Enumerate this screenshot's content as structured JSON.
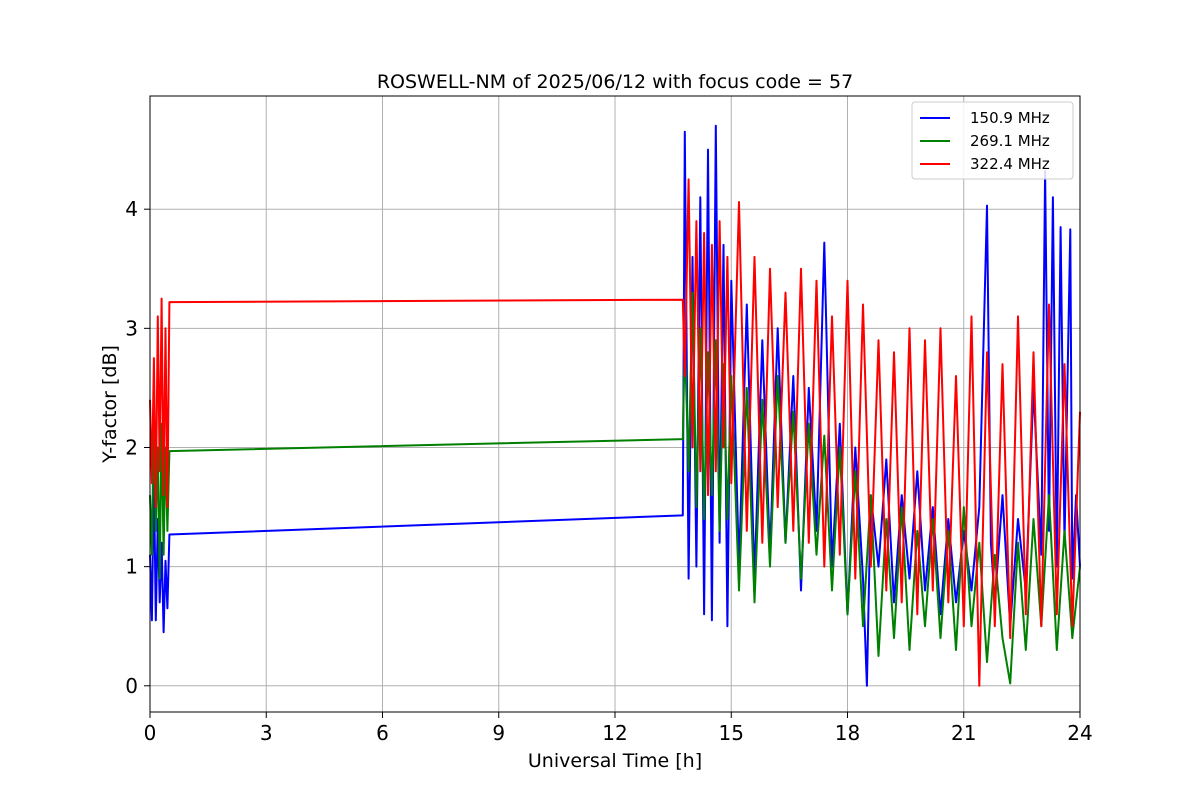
{
  "chart_data": {
    "type": "line",
    "title": "ROSWELL-NM of 2025/06/12 with focus code = 57",
    "xlabel": "Universal Time [h]",
    "ylabel": "Y-factor [dB]",
    "xlim": [
      0,
      24
    ],
    "ylim": [
      -0.22,
      4.95
    ],
    "xticks": [
      0,
      3,
      6,
      9,
      12,
      15,
      18,
      21,
      24
    ],
    "yticks": [
      0,
      1,
      2,
      3,
      4
    ],
    "grid": true,
    "legend_position": "top-right",
    "series": [
      {
        "name": "150.9 MHz",
        "color": "#0000ff",
        "x": [
          0.0,
          0.05,
          0.1,
          0.15,
          0.2,
          0.25,
          0.3,
          0.35,
          0.4,
          0.45,
          0.5,
          13.75,
          13.8,
          13.9,
          14.0,
          14.1,
          14.2,
          14.3,
          14.4,
          14.5,
          14.6,
          14.7,
          14.8,
          14.9,
          15.0,
          15.2,
          15.4,
          15.6,
          15.8,
          16.0,
          16.2,
          16.4,
          16.6,
          16.8,
          17.0,
          17.2,
          17.4,
          17.6,
          17.8,
          18.0,
          18.2,
          18.4,
          18.5,
          18.6,
          18.8,
          19.0,
          19.2,
          19.4,
          19.6,
          19.8,
          20.0,
          20.2,
          20.4,
          20.6,
          20.8,
          21.0,
          21.2,
          21.4,
          21.55,
          21.6,
          21.7,
          21.8,
          22.0,
          22.2,
          22.4,
          22.6,
          22.8,
          23.0,
          23.1,
          23.2,
          23.3,
          23.4,
          23.5,
          23.6,
          23.75,
          23.8,
          23.9,
          24.0
        ],
        "y": [
          1.1,
          0.55,
          1.8,
          0.55,
          1.4,
          0.7,
          1.2,
          0.45,
          1.05,
          0.65,
          1.27,
          1.43,
          4.65,
          0.9,
          3.6,
          1.0,
          4.1,
          0.6,
          4.5,
          0.55,
          4.7,
          1.2,
          3.7,
          0.5,
          3.4,
          1.0,
          3.2,
          0.9,
          2.9,
          1.1,
          3.0,
          1.2,
          2.6,
          0.8,
          2.5,
          1.3,
          3.72,
          1.0,
          2.2,
          0.6,
          2.0,
          0.9,
          0.0,
          1.6,
          1.0,
          1.9,
          0.7,
          1.6,
          0.9,
          1.8,
          0.8,
          1.5,
          0.6,
          1.4,
          0.7,
          1.3,
          0.8,
          1.5,
          3.4,
          4.03,
          1.2,
          0.7,
          1.6,
          0.5,
          1.4,
          0.8,
          2.5,
          1.1,
          4.32,
          1.3,
          4.1,
          1.0,
          3.85,
          1.2,
          3.83,
          0.9,
          1.6,
          1.0
        ]
      },
      {
        "name": "269.1 MHz",
        "color": "#008000",
        "x": [
          0.0,
          0.05,
          0.1,
          0.15,
          0.2,
          0.25,
          0.3,
          0.35,
          0.4,
          0.45,
          0.5,
          13.75,
          13.8,
          13.9,
          14.0,
          14.1,
          14.2,
          14.3,
          14.4,
          14.5,
          14.6,
          14.7,
          14.8,
          14.9,
          15.0,
          15.2,
          15.4,
          15.6,
          15.8,
          16.0,
          16.2,
          16.4,
          16.6,
          16.8,
          17.0,
          17.2,
          17.4,
          17.6,
          17.8,
          18.0,
          18.2,
          18.4,
          18.6,
          18.8,
          19.0,
          19.2,
          19.4,
          19.6,
          19.8,
          20.0,
          20.2,
          20.4,
          20.6,
          20.8,
          21.0,
          21.2,
          21.4,
          21.6,
          21.8,
          22.0,
          22.2,
          22.4,
          22.6,
          22.8,
          23.0,
          23.2,
          23.4,
          23.6,
          23.8,
          24.0
        ],
        "y": [
          1.6,
          1.1,
          2.3,
          1.3,
          2.0,
          0.9,
          2.2,
          1.1,
          2.0,
          1.3,
          1.97,
          2.07,
          2.9,
          1.8,
          3.3,
          1.5,
          3.0,
          1.4,
          2.8,
          1.6,
          2.9,
          1.3,
          2.7,
          1.4,
          2.6,
          0.8,
          2.5,
          0.7,
          2.4,
          1.0,
          2.6,
          1.2,
          2.3,
          0.9,
          2.2,
          1.1,
          2.1,
          0.8,
          2.0,
          0.6,
          1.8,
          0.5,
          1.6,
          0.25,
          1.4,
          0.4,
          1.5,
          0.3,
          1.3,
          0.5,
          1.4,
          0.4,
          1.3,
          0.3,
          1.5,
          0.5,
          1.2,
          0.2,
          1.1,
          0.4,
          0.02,
          1.2,
          0.3,
          1.4,
          0.5,
          1.6,
          0.3,
          1.3,
          0.4,
          1.0
        ]
      },
      {
        "name": "322.4 MHz",
        "color": "#ff0000",
        "x": [
          0.0,
          0.05,
          0.1,
          0.15,
          0.2,
          0.25,
          0.3,
          0.35,
          0.4,
          0.45,
          0.5,
          13.75,
          13.8,
          13.9,
          14.0,
          14.1,
          14.2,
          14.3,
          14.4,
          14.5,
          14.6,
          14.7,
          14.8,
          14.9,
          15.0,
          15.2,
          15.4,
          15.6,
          15.8,
          16.0,
          16.2,
          16.4,
          16.6,
          16.8,
          17.0,
          17.2,
          17.4,
          17.6,
          17.8,
          18.0,
          18.2,
          18.4,
          18.6,
          18.8,
          19.0,
          19.2,
          19.4,
          19.6,
          19.8,
          20.0,
          20.2,
          20.4,
          20.6,
          20.8,
          21.0,
          21.2,
          21.4,
          21.6,
          21.8,
          22.0,
          22.2,
          22.4,
          22.6,
          22.8,
          23.0,
          23.2,
          23.4,
          23.6,
          23.8,
          24.0
        ],
        "y": [
          2.4,
          1.7,
          2.75,
          1.5,
          3.1,
          1.8,
          3.25,
          1.6,
          3.0,
          1.5,
          3.22,
          3.24,
          2.6,
          4.25,
          2.0,
          3.9,
          1.8,
          3.8,
          1.6,
          3.7,
          1.8,
          3.9,
          2.0,
          3.6,
          1.7,
          4.06,
          1.3,
          3.6,
          1.2,
          3.5,
          1.5,
          3.3,
          1.3,
          3.5,
          1.2,
          3.4,
          1.0,
          3.1,
          1.1,
          3.4,
          0.9,
          3.2,
          1.0,
          2.9,
          0.8,
          2.8,
          0.7,
          3.0,
          0.6,
          2.9,
          0.8,
          3.0,
          0.7,
          2.6,
          0.5,
          3.1,
          0.0,
          2.8,
          0.5,
          2.7,
          0.4,
          3.1,
          0.6,
          2.8,
          0.5,
          3.2,
          0.6,
          2.7,
          0.5,
          2.3
        ]
      }
    ]
  }
}
